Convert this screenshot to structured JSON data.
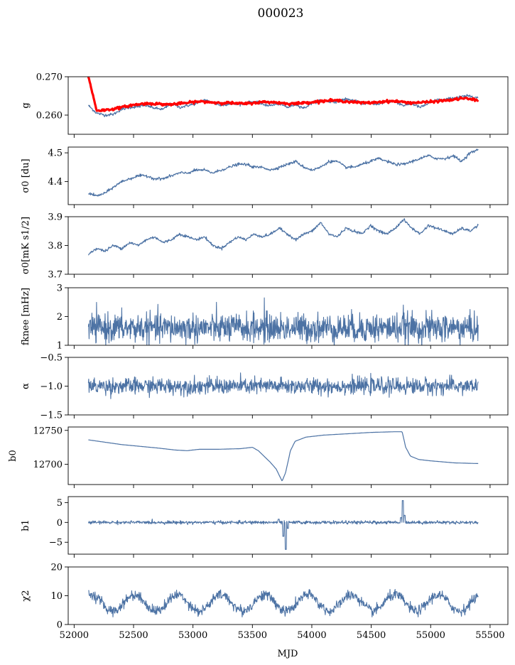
{
  "figure": {
    "title": "000023",
    "xlabel": "MJD",
    "xlim": [
      51950,
      55650
    ],
    "xticks": [
      52000,
      52500,
      53000,
      53500,
      54000,
      54500,
      55000,
      55500
    ],
    "series_color": "#4c72a4",
    "fit_color": "#ff0000"
  },
  "chart_data": [
    {
      "type": "line",
      "ylabel": "g",
      "ylim": [
        0.255,
        0.27
      ],
      "yticks": [
        0.26,
        0.27
      ],
      "ytick_labels": [
        "0.260",
        "0.270"
      ],
      "x_range": [
        52120,
        55400
      ],
      "series": [
        {
          "values_approx": [
            0.2625,
            0.2605,
            0.26,
            0.2602,
            0.2615,
            0.262,
            0.2622,
            0.2625,
            0.2618,
            0.2615,
            0.263,
            0.262,
            0.2625,
            0.263,
            0.264,
            0.2632,
            0.2625,
            0.263,
            0.2628,
            0.2632,
            0.2635,
            0.2628,
            0.2625,
            0.263,
            0.262,
            0.2628,
            0.2618,
            0.2632,
            0.264,
            0.2635,
            0.2635,
            0.2642,
            0.2638,
            0.263,
            0.2632,
            0.2628,
            0.2635,
            0.2635,
            0.2625,
            0.263,
            0.262,
            0.263,
            0.264,
            0.264,
            0.2645,
            0.2648,
            0.265,
            0.2645
          ]
        },
        {
          "values_approx": [
            0.27,
            0.2612,
            0.2613,
            0.2616,
            0.262,
            0.2625,
            0.2628,
            0.263,
            0.263,
            0.2628,
            0.2628,
            0.263,
            0.2632,
            0.2635,
            0.2635,
            0.2633,
            0.2632,
            0.2632,
            0.263,
            0.263,
            0.2632,
            0.2634,
            0.2634,
            0.2632,
            0.263,
            0.263,
            0.2632,
            0.2634,
            0.2636,
            0.2638,
            0.2638,
            0.2636,
            0.2634,
            0.2632,
            0.2632,
            0.2634,
            0.2636,
            0.2636,
            0.2634,
            0.2632,
            0.2633,
            0.2634,
            0.2636,
            0.2638,
            0.264,
            0.2644,
            0.2642,
            0.2638
          ]
        }
      ]
    },
    {
      "type": "line",
      "ylabel": "σ0 [du]",
      "ylim": [
        4.32,
        4.52
      ],
      "yticks": [
        4.4,
        4.5
      ],
      "ytick_labels": [
        "4.4",
        "4.5"
      ],
      "x_range": [
        52120,
        55400
      ],
      "series": [
        {
          "values_approx": [
            4.36,
            4.35,
            4.36,
            4.38,
            4.4,
            4.41,
            4.42,
            4.42,
            4.41,
            4.41,
            4.42,
            4.43,
            4.43,
            4.44,
            4.44,
            4.43,
            4.44,
            4.45,
            4.46,
            4.46,
            4.45,
            4.45,
            4.44,
            4.45,
            4.46,
            4.47,
            4.45,
            4.44,
            4.45,
            4.47,
            4.47,
            4.45,
            4.45,
            4.46,
            4.47,
            4.48,
            4.47,
            4.46,
            4.46,
            4.47,
            4.48,
            4.49,
            4.48,
            4.48,
            4.49,
            4.47,
            4.5,
            4.51
          ]
        }
      ]
    },
    {
      "type": "line",
      "ylabel": "σ0[mK s1/2]",
      "ylim": [
        3.7,
        3.9
      ],
      "yticks": [
        3.7,
        3.8,
        3.9
      ],
      "ytick_labels": [
        "3.7",
        "3.8",
        "3.9"
      ],
      "x_range": [
        52120,
        55400
      ],
      "series": [
        {
          "values_approx": [
            3.77,
            3.79,
            3.78,
            3.8,
            3.79,
            3.81,
            3.8,
            3.82,
            3.83,
            3.81,
            3.82,
            3.84,
            3.83,
            3.82,
            3.83,
            3.8,
            3.79,
            3.81,
            3.83,
            3.82,
            3.84,
            3.83,
            3.84,
            3.86,
            3.84,
            3.82,
            3.84,
            3.85,
            3.88,
            3.84,
            3.83,
            3.86,
            3.85,
            3.84,
            3.87,
            3.85,
            3.84,
            3.86,
            3.89,
            3.86,
            3.84,
            3.87,
            3.86,
            3.85,
            3.84,
            3.86,
            3.85,
            3.87
          ]
        }
      ]
    },
    {
      "type": "line",
      "ylabel": "fknee [mHz]",
      "ylim": [
        1,
        3
      ],
      "yticks": [
        1,
        2,
        3
      ],
      "ytick_labels": [
        "1",
        "2",
        "3"
      ],
      "x_range": [
        52120,
        55400
      ],
      "noise": {
        "mean": 1.6,
        "spread": 0.25
      },
      "annotations": [
        {
          "x": 53600,
          "y": 2.65
        },
        {
          "x": 54770,
          "y": 2.4
        }
      ]
    },
    {
      "type": "line",
      "ylabel": "α",
      "ylim": [
        -1.5,
        -0.5
      ],
      "yticks": [
        -1.5,
        -1.0,
        -0.5
      ],
      "ytick_labels": [
        "−1.5",
        "−1.0",
        "−0.5"
      ],
      "x_range": [
        52120,
        55400
      ],
      "noise": {
        "mean": -1.0,
        "spread": 0.07
      }
    },
    {
      "type": "line",
      "ylabel": "b0",
      "ylim": [
        12670,
        12755
      ],
      "yticks": [
        12700,
        12750
      ],
      "ytick_labels": [
        "12700",
        "12750"
      ],
      "x_range": [
        52120,
        55400
      ],
      "series": [
        {
          "points": [
            [
              52120,
              12736
            ],
            [
              52400,
              12729
            ],
            [
              52700,
              12724
            ],
            [
              52850,
              12721
            ],
            [
              52950,
              12720
            ],
            [
              53050,
              12722
            ],
            [
              53200,
              12722
            ],
            [
              53400,
              12723
            ],
            [
              53500,
              12725
            ],
            [
              53550,
              12720
            ],
            [
              53650,
              12703
            ],
            [
              53700,
              12693
            ],
            [
              53750,
              12675
            ],
            [
              53780,
              12688
            ],
            [
              53820,
              12720
            ],
            [
              53860,
              12734
            ],
            [
              53950,
              12740
            ],
            [
              54100,
              12743
            ],
            [
              54300,
              12745
            ],
            [
              54500,
              12747
            ],
            [
              54700,
              12748
            ],
            [
              54760,
              12748
            ],
            [
              54790,
              12725
            ],
            [
              54830,
              12712
            ],
            [
              54900,
              12707
            ],
            [
              55000,
              12705
            ],
            [
              55200,
              12702
            ],
            [
              55400,
              12701
            ]
          ]
        }
      ]
    },
    {
      "type": "line",
      "ylabel": "b1",
      "ylim": [
        -8,
        6.5
      ],
      "yticks": [
        -5,
        0,
        5
      ],
      "ytick_labels": [
        "−5",
        "0",
        "5"
      ],
      "x_range": [
        52120,
        55400
      ],
      "noise": {
        "mean": 0.0,
        "spread": 0.2
      },
      "events": [
        {
          "x": 53720,
          "y": 0.8
        },
        {
          "x": 53760,
          "y": -3.5
        },
        {
          "x": 53780,
          "y": -6.8
        },
        {
          "x": 53800,
          "y": -1.5
        },
        {
          "x": 54750,
          "y": 1.2
        },
        {
          "x": 54765,
          "y": 5.5
        },
        {
          "x": 54780,
          "y": 1.8
        }
      ]
    },
    {
      "type": "line",
      "ylabel": "χ2",
      "ylim": [
        0,
        20
      ],
      "yticks": [
        0,
        10,
        20
      ],
      "ytick_labels": [
        "0",
        "10",
        "20"
      ],
      "x_range": [
        52120,
        55400
      ],
      "seasonal": {
        "mean": 7.5,
        "amplitude": 2.8,
        "period_days": 365
      }
    }
  ]
}
